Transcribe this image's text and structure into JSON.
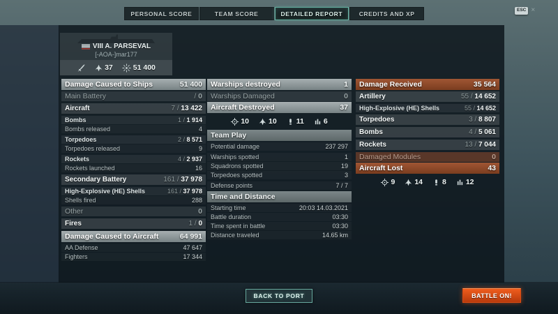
{
  "window": {
    "esc_key": "ESC",
    "close_icon": "×"
  },
  "tabs": [
    {
      "label": "PERSONAL SCORE",
      "active": false
    },
    {
      "label": "TEAM SCORE",
      "active": false
    },
    {
      "label": "DETAILED REPORT",
      "active": true
    },
    {
      "label": "CREDITS AND XP",
      "active": false
    }
  ],
  "ship": {
    "flag": "german-flag",
    "title": "VIII A. PARSEVAL",
    "player": "[-AOA-]mar177",
    "stats": [
      {
        "icon": "sword",
        "count": ""
      },
      {
        "icon": "plane",
        "count": "37"
      },
      {
        "icon": "burst",
        "count": "51 400"
      }
    ]
  },
  "columns": {
    "left": [
      {
        "style": "header-silver",
        "label": "Damage Caused to Ships",
        "value": "51 400"
      },
      {
        "style": "sub-dim",
        "label": "Main Battery",
        "value": "/ 0"
      },
      {
        "style": "gap"
      },
      {
        "style": "major",
        "label": "Aircraft",
        "value": "7 / 13 422"
      },
      {
        "style": "gap"
      },
      {
        "style": "minor-bold",
        "label": "Bombs",
        "value": "1 / 1 914"
      },
      {
        "style": "detail",
        "label": "Bombs released",
        "value": "4"
      },
      {
        "style": "gap"
      },
      {
        "style": "minor-bold",
        "label": "Torpedoes",
        "value": "2 / 8 571"
      },
      {
        "style": "detail",
        "label": "Torpedoes released",
        "value": "9"
      },
      {
        "style": "gap"
      },
      {
        "style": "minor-bold",
        "label": "Rockets",
        "value": "4 / 2 937"
      },
      {
        "style": "detail",
        "label": "Rockets launched",
        "value": "16"
      },
      {
        "style": "gap"
      },
      {
        "style": "major",
        "label": "Secondary Battery",
        "value": "161 / 37 978"
      },
      {
        "style": "gap"
      },
      {
        "style": "minor-bold",
        "label": "High-Explosive (HE) Shells",
        "value": "161 / 37 978"
      },
      {
        "style": "detail",
        "label": "Shells fired",
        "value": "288"
      },
      {
        "style": "gap"
      },
      {
        "style": "sub-dim",
        "label": "Other",
        "value": "0"
      },
      {
        "style": "gap"
      },
      {
        "style": "major",
        "label": "Fires",
        "value": "1 / 0"
      },
      {
        "style": "gap"
      },
      {
        "style": "header-silver",
        "label": "Damage Caused to Aircraft",
        "value": "64 991"
      },
      {
        "style": "detail",
        "label": "AA Defense",
        "value": "47 647"
      },
      {
        "style": "detail",
        "label": "Fighters",
        "value": "17 344"
      }
    ],
    "middle": [
      {
        "style": "header-silver",
        "label": "Warships destroyed",
        "value": "1"
      },
      {
        "style": "sub-dim",
        "label": "Warships Damaged",
        "value": "0"
      },
      {
        "style": "header-silver",
        "label": "Aircraft Destroyed",
        "value": "37"
      },
      {
        "style": "icons",
        "items": [
          {
            "icon": "target",
            "count": "10"
          },
          {
            "icon": "plane",
            "count": "10"
          },
          {
            "icon": "bomb",
            "count": "11"
          },
          {
            "icon": "bars",
            "count": "6"
          }
        ]
      },
      {
        "style": "header-group",
        "label": "Team Play",
        "value": ""
      },
      {
        "style": "detail",
        "label": "Potential damage",
        "value": "237 297"
      },
      {
        "style": "gap"
      },
      {
        "style": "detail",
        "label": "Warships spotted",
        "value": "1"
      },
      {
        "style": "detail",
        "label": "Squadrons spotted",
        "value": "19"
      },
      {
        "style": "detail",
        "label": "Torpedoes spotted",
        "value": "3"
      },
      {
        "style": "gap"
      },
      {
        "style": "detail",
        "label": "Defense points",
        "value": "7 / 7"
      },
      {
        "style": "header-group",
        "label": "Time and Distance",
        "value": ""
      },
      {
        "style": "detail",
        "label": "Starting time",
        "value": "20:03 14.03.2021"
      },
      {
        "style": "detail",
        "label": "Battle duration",
        "value": "03:30"
      },
      {
        "style": "detail",
        "label": "Time spent in battle",
        "value": "03:30"
      },
      {
        "style": "detail",
        "label": "Distance traveled",
        "value": "14.65 km"
      }
    ],
    "right": [
      {
        "style": "header-orange",
        "label": "Damage Received",
        "value": "35 564"
      },
      {
        "style": "major",
        "label": "Artillery",
        "value": "55 / 14 652"
      },
      {
        "style": "gap"
      },
      {
        "style": "minor-bold",
        "label": "High-Explosive (HE) Shells",
        "value": "55 / 14 652"
      },
      {
        "style": "gap"
      },
      {
        "style": "major",
        "label": "Torpedoes",
        "value": "3 / 8 807"
      },
      {
        "style": "gap"
      },
      {
        "style": "major",
        "label": "Bombs",
        "value": "4 / 5 061"
      },
      {
        "style": "gap"
      },
      {
        "style": "major",
        "label": "Rockets",
        "value": "13 / 7 044"
      },
      {
        "style": "gap"
      },
      {
        "style": "sub-dim-orange",
        "label": "Damaged Modules",
        "value": "0"
      },
      {
        "style": "header-orange",
        "label": "Aircraft Lost",
        "value": "43"
      },
      {
        "style": "icons",
        "items": [
          {
            "icon": "target",
            "count": "9"
          },
          {
            "icon": "plane",
            "count": "14"
          },
          {
            "icon": "bomb",
            "count": "8"
          },
          {
            "icon": "bars",
            "count": "12"
          }
        ]
      }
    ]
  },
  "footer": {
    "back_to_port": "BACK TO PORT",
    "battle_on": "BATTLE ON!"
  }
}
